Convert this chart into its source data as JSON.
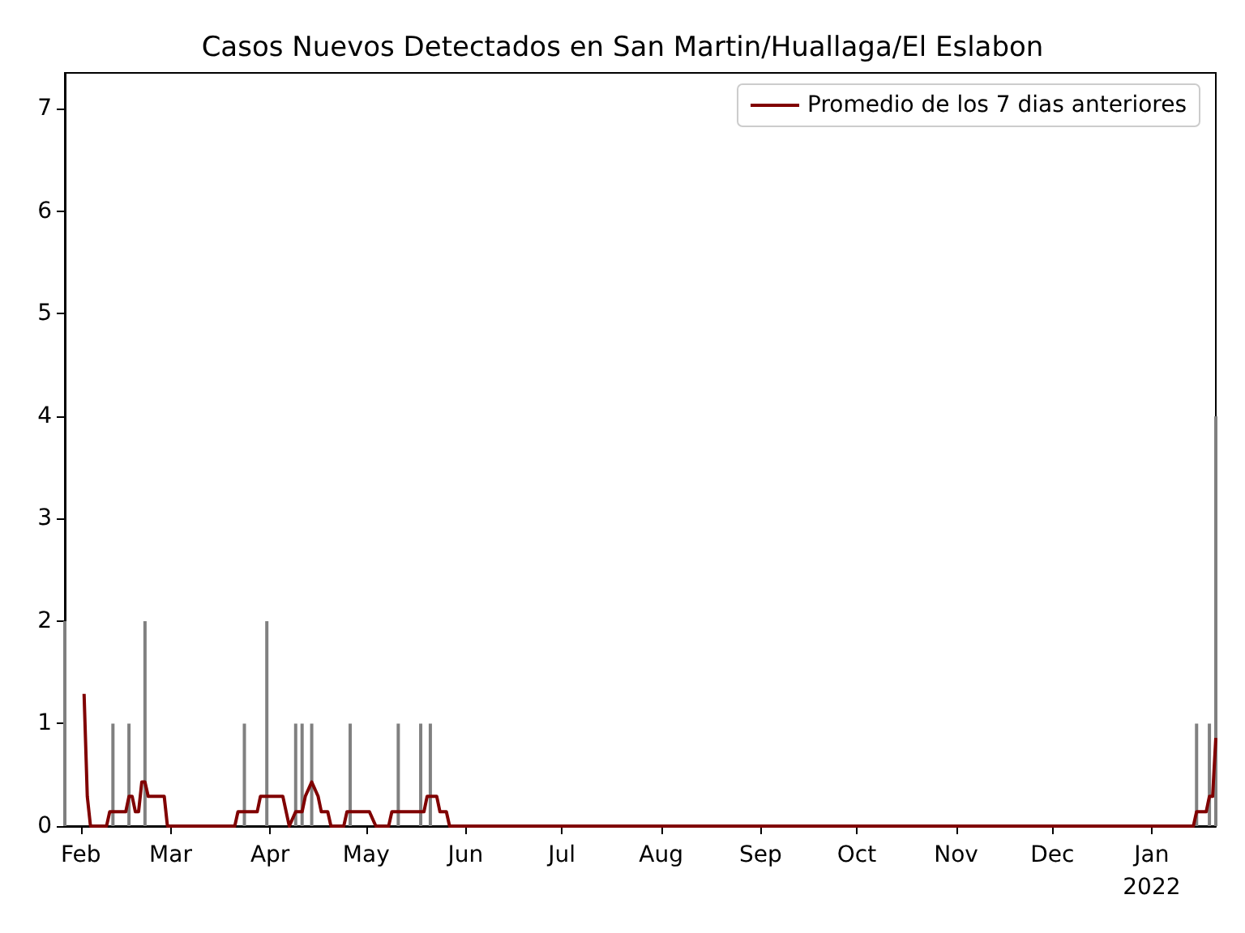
{
  "chart_data": {
    "type": "bar",
    "title": "Casos Nuevos Detectados en San Martin/Huallaga/El Eslabon",
    "xlim": [
      "2021-01-27",
      "2022-01-21"
    ],
    "ylim": [
      0,
      7.35
    ],
    "yticks": [
      0,
      1,
      2,
      3,
      4,
      5,
      6,
      7
    ],
    "xticks": [
      {
        "value": "2021-02-01",
        "label": "Feb"
      },
      {
        "value": "2021-03-01",
        "label": "Mar"
      },
      {
        "value": "2021-04-01",
        "label": "Apr"
      },
      {
        "value": "2021-05-01",
        "label": "May"
      },
      {
        "value": "2021-06-01",
        "label": "Jun"
      },
      {
        "value": "2021-07-01",
        "label": "Jul"
      },
      {
        "value": "2021-08-01",
        "label": "Aug"
      },
      {
        "value": "2021-09-01",
        "label": "Sep"
      },
      {
        "value": "2021-10-01",
        "label": "Oct"
      },
      {
        "value": "2021-11-01",
        "label": "Nov"
      },
      {
        "value": "2021-12-01",
        "label": "Dec"
      },
      {
        "value": "2022-01-01",
        "label": "Jan\n2022"
      }
    ],
    "grid": false,
    "legend": "top right",
    "series": [
      {
        "color": "#808080",
        "x": [
          "2021-01-27",
          "2021-02-11",
          "2021-02-16",
          "2021-02-21",
          "2021-03-24",
          "2021-03-31",
          "2021-04-09",
          "2021-04-11",
          "2021-04-14",
          "2021-04-26",
          "2021-05-11",
          "2021-05-18",
          "2021-05-21",
          "2022-01-15",
          "2022-01-19",
          "2022-01-21"
        ],
        "values": [
          2,
          1,
          1,
          2,
          1,
          2,
          1,
          1,
          1,
          1,
          1,
          1,
          1,
          1,
          1,
          4
        ]
      },
      {
        "type": "line",
        "name": "Promedio de los 7 dias anteriores",
        "color": "#800000",
        "x": [
          "2021-02-02",
          "2021-02-03",
          "2021-02-04",
          "2021-02-09",
          "2021-02-10",
          "2021-02-15",
          "2021-02-16",
          "2021-02-17",
          "2021-02-18",
          "2021-02-19",
          "2021-02-20",
          "2021-02-21",
          "2021-02-22",
          "2021-02-27",
          "2021-02-28",
          "2021-03-21",
          "2021-03-22",
          "2021-03-28",
          "2021-03-29",
          "2021-04-05",
          "2021-04-07",
          "2021-04-09",
          "2021-04-11",
          "2021-04-12",
          "2021-04-14",
          "2021-04-16",
          "2021-04-17",
          "2021-04-19",
          "2021-04-20",
          "2021-04-24",
          "2021-04-25",
          "2021-05-02",
          "2021-05-04",
          "2021-05-08",
          "2021-05-09",
          "2021-05-19",
          "2021-05-20",
          "2021-05-23",
          "2021-05-24",
          "2021-05-26",
          "2021-05-27",
          "2022-01-14",
          "2022-01-15",
          "2022-01-18",
          "2022-01-19",
          "2022-01-20",
          "2022-01-21"
        ],
        "values": [
          1.29,
          0.29,
          0,
          0,
          0.14,
          0.14,
          0.29,
          0.29,
          0.14,
          0.14,
          0.43,
          0.43,
          0.29,
          0.29,
          0,
          0,
          0.14,
          0.14,
          0.29,
          0.29,
          0,
          0.14,
          0.14,
          0.29,
          0.43,
          0.29,
          0.14,
          0.14,
          0,
          0,
          0.14,
          0.14,
          0,
          0,
          0.14,
          0.14,
          0.29,
          0.29,
          0.14,
          0.14,
          0,
          0,
          0.14,
          0.14,
          0.29,
          0.29,
          0.86
        ]
      }
    ]
  }
}
